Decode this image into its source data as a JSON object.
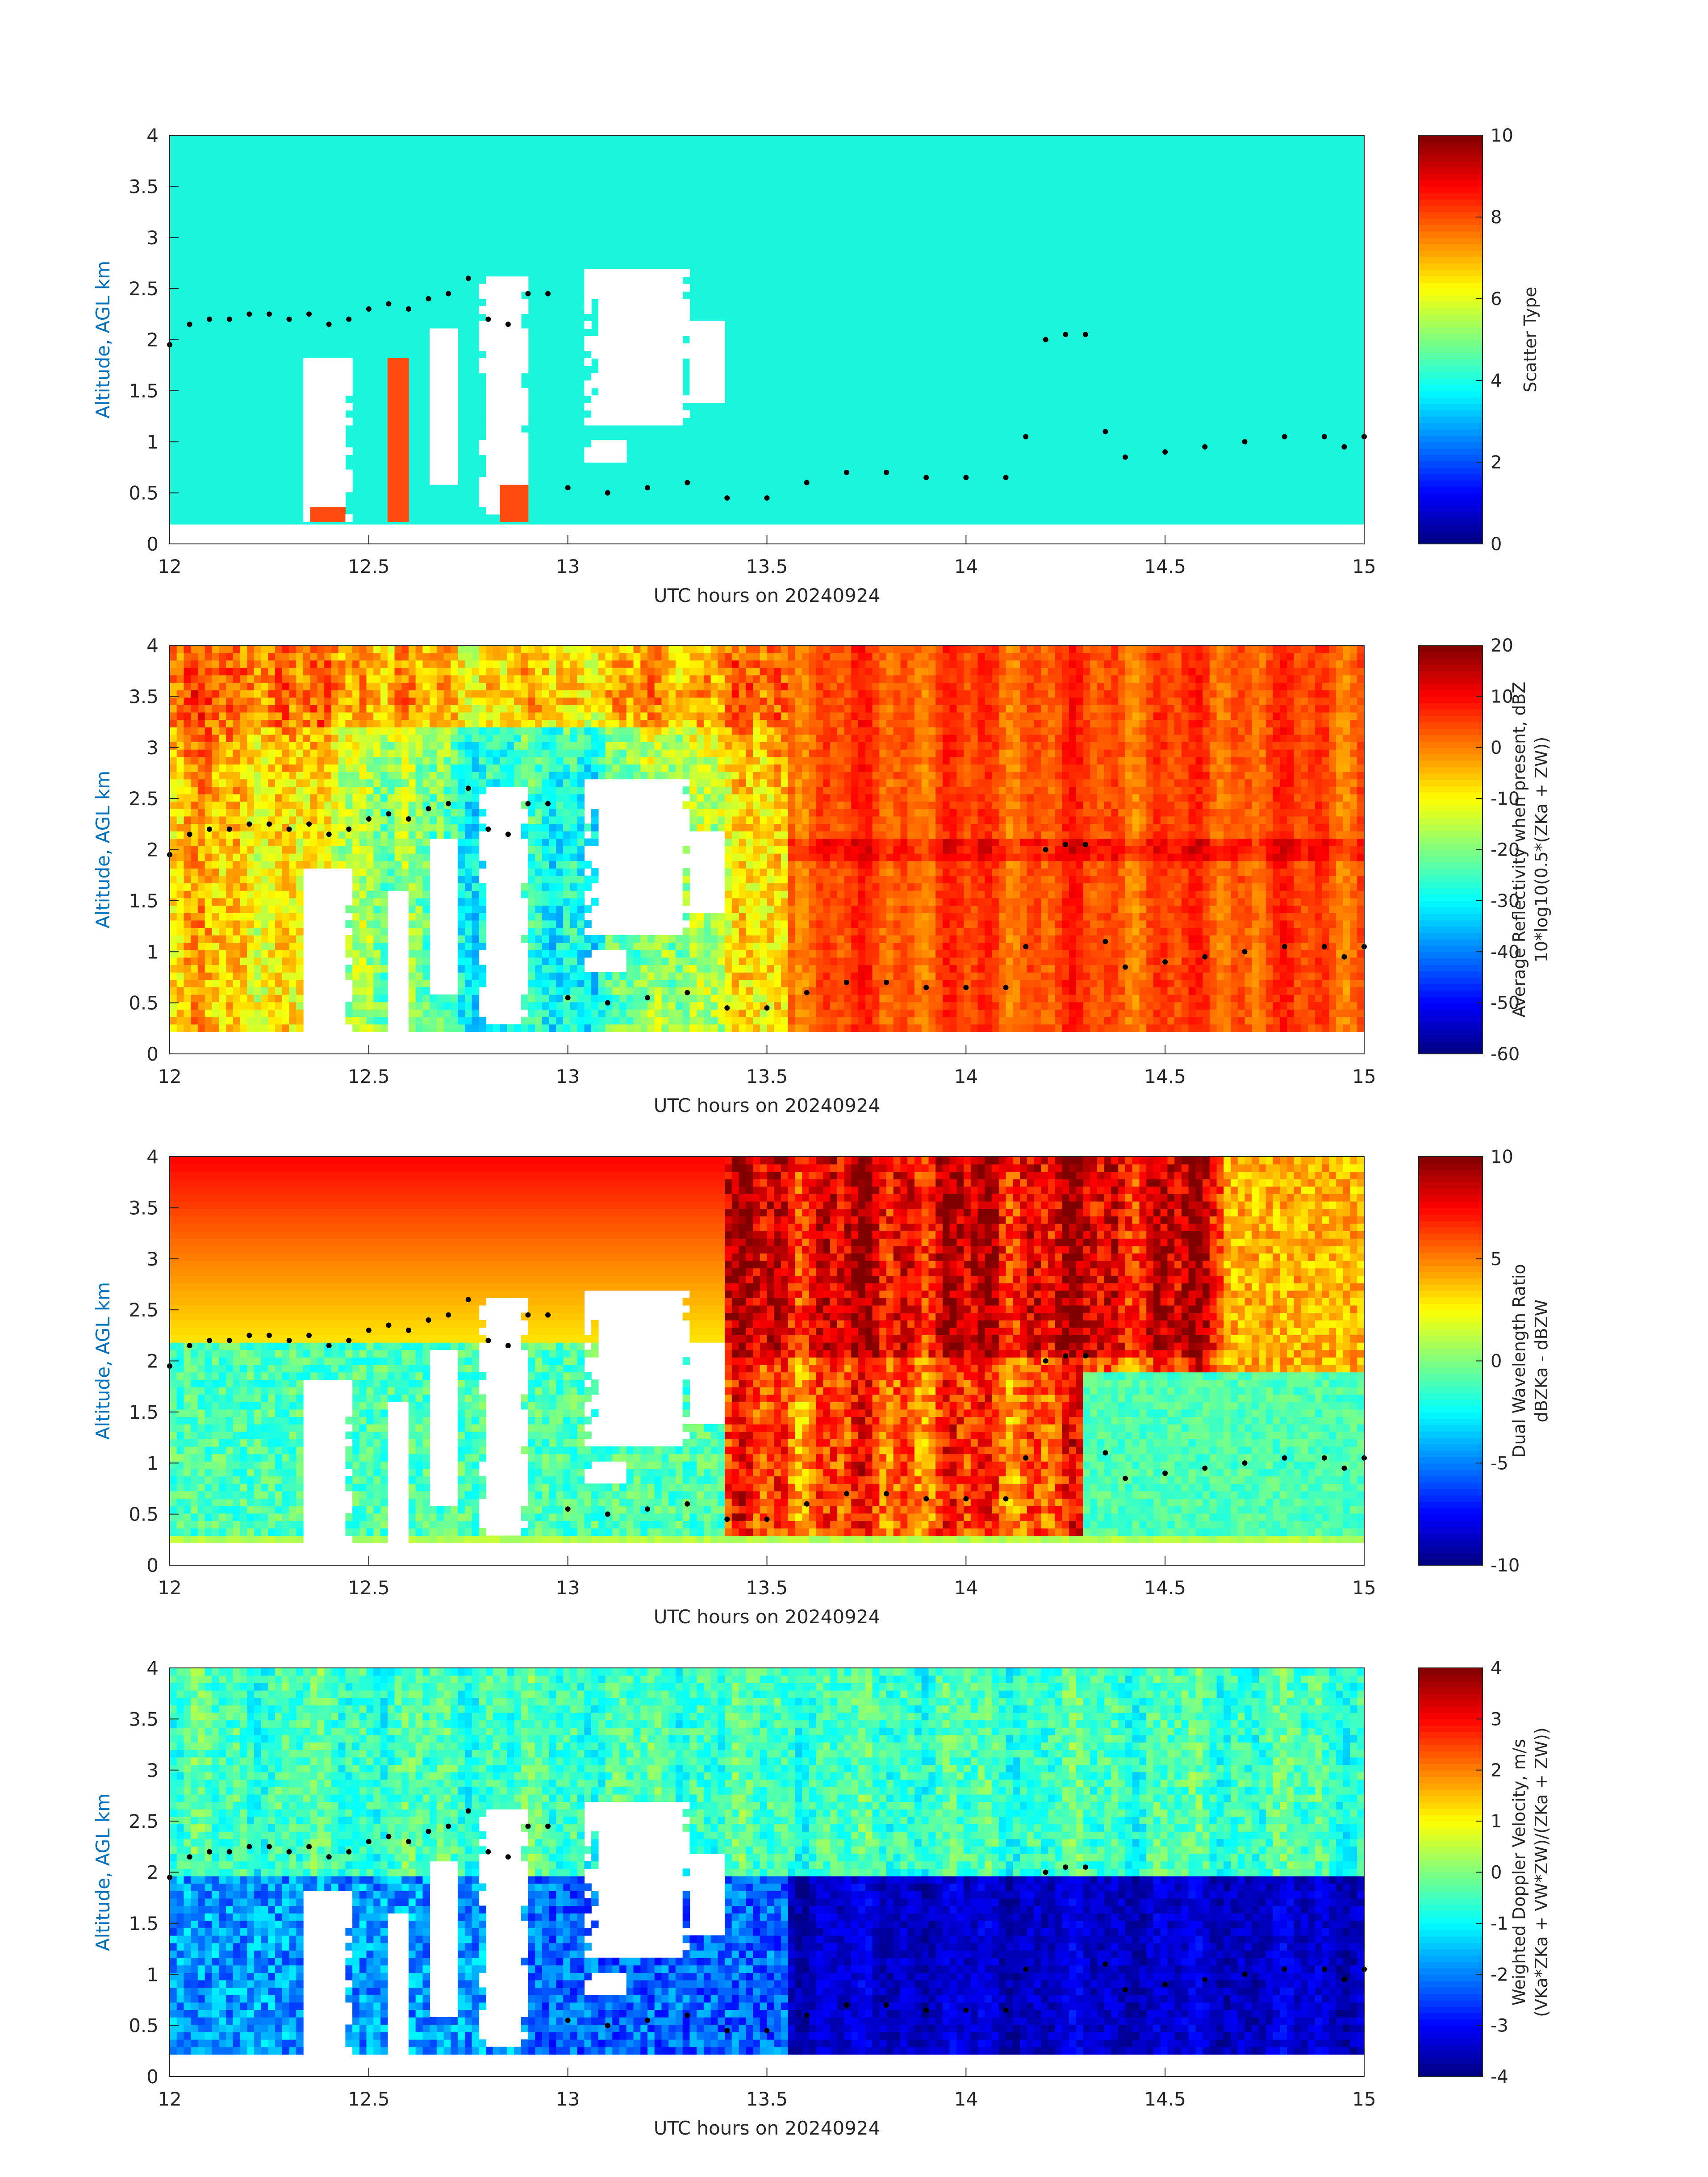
{
  "figure": {
    "panels": [
      {
        "id": "scatter",
        "ylabel": "Altitude, AGL km",
        "xlabel": "UTC hours on 20240924",
        "cbar_label_lines": [
          "Scatter Type"
        ],
        "cbar_ticks": [
          "0",
          "2",
          "4",
          "6",
          "8",
          "10"
        ],
        "cbar_range": [
          0,
          10
        ]
      },
      {
        "id": "reflectivity",
        "ylabel": "Altitude, AGL km",
        "xlabel": "UTC hours on 20240924",
        "cbar_label_lines": [
          "Average Reflectivity when present, dBZ",
          "10*log10(0.5*(ZKa + ZW))"
        ],
        "cbar_ticks": [
          "-60",
          "-50",
          "-40",
          "-30",
          "-20",
          "-10",
          "0",
          "10",
          "20"
        ],
        "cbar_range": [
          -60,
          20
        ]
      },
      {
        "id": "dwr",
        "ylabel": "Altitude, AGL km",
        "xlabel": "UTC hours on 20240924",
        "cbar_label_lines": [
          "Dual Wavelength Ratio",
          "dBZKa - dBZW"
        ],
        "cbar_ticks": [
          "-10",
          "-5",
          "0",
          "5",
          "10"
        ],
        "cbar_range": [
          -10,
          10
        ]
      },
      {
        "id": "doppler",
        "ylabel": "Altitude, AGL km",
        "xlabel": "UTC hours on 20240924",
        "cbar_label_lines": [
          "Weighted Doppler Velocity, m/s",
          "(VKa*ZKa + VW*ZW)/(ZKa + ZW))"
        ],
        "cbar_ticks": [
          "-4",
          "-3",
          "-2",
          "-1",
          "0",
          "1",
          "2",
          "3",
          "4"
        ],
        "cbar_range": [
          -4,
          4
        ]
      }
    ],
    "x_ticks": [
      "12",
      "12.5",
      "13",
      "13.5",
      "14",
      "14.5",
      "15"
    ],
    "y_ticks": [
      "0",
      "0.5",
      "1",
      "1.5",
      "2",
      "2.5",
      "3",
      "3.5",
      "4"
    ],
    "colors": {
      "axis_label": "#0072BD",
      "scatter_background": "#1AF5DC",
      "scatter_red": "#FF4A10",
      "points": "#000000"
    }
  },
  "chart_data": [
    {
      "type": "heatmap",
      "xlabel": "UTC hours on 20240924",
      "ylabel": "Altitude, AGL km",
      "xlim": [
        12,
        15
      ],
      "ylim": [
        0,
        4
      ],
      "colorbar": {
        "label": "Scatter Type",
        "range": [
          0,
          10
        ]
      },
      "background_value": 3.3,
      "cloud_base_points": {
        "x": [
          12.0,
          12.05,
          12.1,
          12.15,
          12.2,
          12.25,
          12.3,
          12.35,
          12.4,
          12.45,
          12.5,
          12.55,
          12.6,
          12.65,
          12.7,
          12.75,
          12.8,
          12.85,
          12.9,
          12.95,
          13.0,
          13.1,
          13.2,
          13.3,
          13.4,
          13.5,
          13.6,
          13.7,
          13.8,
          13.9,
          14.0,
          14.1,
          14.15,
          14.2,
          14.25,
          14.3,
          14.35,
          14.4,
          14.5,
          14.6,
          14.7,
          14.8,
          14.9,
          14.95,
          15.0
        ],
        "y": [
          1.95,
          2.15,
          2.2,
          2.2,
          2.25,
          2.25,
          2.2,
          2.25,
          2.15,
          2.2,
          2.3,
          2.35,
          2.3,
          2.4,
          2.45,
          2.6,
          2.2,
          2.15,
          2.45,
          2.45,
          0.55,
          0.5,
          0.55,
          0.6,
          0.45,
          0.45,
          0.6,
          0.7,
          0.7,
          0.65,
          0.65,
          0.65,
          1.05,
          2.0,
          2.05,
          2.05,
          1.1,
          0.85,
          0.9,
          0.95,
          1.0,
          1.05,
          1.05,
          0.95,
          1.05
        ]
      }
    },
    {
      "type": "heatmap",
      "xlabel": "UTC hours on 20240924",
      "ylabel": "Altitude, AGL km",
      "xlim": [
        12,
        15
      ],
      "ylim": [
        0,
        4
      ],
      "colorbar": {
        "label": "Average Reflectivity when present, dBZ",
        "range": [
          -60,
          20
        ]
      }
    },
    {
      "type": "heatmap",
      "xlabel": "UTC hours on 20240924",
      "ylabel": "Altitude, AGL km",
      "xlim": [
        12,
        15
      ],
      "ylim": [
        0,
        4
      ],
      "colorbar": {
        "label": "Dual Wavelength Ratio",
        "range": [
          -10,
          10
        ]
      }
    },
    {
      "type": "heatmap",
      "xlabel": "UTC hours on 20240924",
      "ylabel": "Altitude, AGL km",
      "xlim": [
        12,
        15
      ],
      "ylim": [
        0,
        4
      ],
      "colorbar": {
        "label": "Weighted Doppler Velocity, m/s",
        "range": [
          -4,
          4
        ]
      }
    }
  ]
}
